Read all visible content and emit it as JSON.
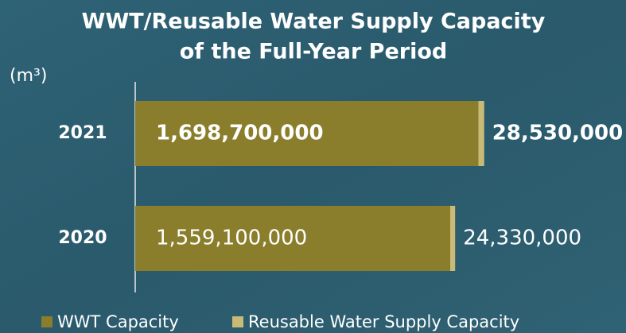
{
  "chart_data": {
    "type": "stacked-barh",
    "title": "WWT/Reusable Water Supply Capacity",
    "subtitle": "of the Full-Year Period",
    "unit": "(m³)",
    "categories": [
      "2021",
      "2020"
    ],
    "series": [
      {
        "name": "WWT Capacity",
        "color": "#8a7e2c",
        "values": [
          1698700000,
          1559100000
        ],
        "value_labels": [
          "1,698,700,000",
          "1,559,100,000"
        ]
      },
      {
        "name": "Reusable Water Supply Capacity",
        "color": "#c9bb76",
        "values": [
          28530000,
          24330000
        ],
        "value_labels": [
          "28,530,000",
          "24,330,000"
        ]
      }
    ],
    "xlim": [
      0,
      2000000000
    ]
  }
}
